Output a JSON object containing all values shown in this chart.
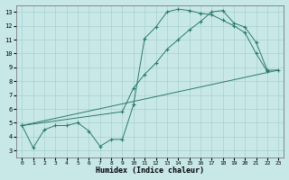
{
  "xlabel": "Humidex (Indice chaleur)",
  "bg_color": "#c8e8e8",
  "grid_color": "#a8d0d0",
  "line_color": "#2a7a68",
  "xlim": [
    -0.5,
    23.5
  ],
  "ylim": [
    2.5,
    13.5
  ],
  "xticks": [
    0,
    1,
    2,
    3,
    4,
    5,
    6,
    7,
    8,
    9,
    10,
    11,
    12,
    13,
    14,
    15,
    16,
    17,
    18,
    19,
    20,
    21,
    22,
    23
  ],
  "yticks": [
    3,
    4,
    5,
    6,
    7,
    8,
    9,
    10,
    11,
    12,
    13
  ],
  "curve1_x": [
    0,
    1,
    2,
    3,
    4,
    5,
    6,
    7,
    8,
    9,
    10,
    11,
    12,
    13,
    14,
    15,
    16,
    17,
    18,
    19,
    20,
    21,
    22
  ],
  "curve1_y": [
    4.8,
    3.2,
    4.5,
    4.8,
    4.8,
    5.0,
    4.4,
    3.3,
    3.8,
    3.8,
    6.3,
    11.1,
    11.9,
    13.0,
    13.2,
    13.1,
    12.9,
    12.8,
    12.4,
    12.0,
    11.5,
    10.0,
    8.7
  ],
  "curve2_x": [
    0,
    9,
    10,
    11,
    12,
    13,
    14,
    15,
    16,
    17,
    18,
    19,
    20,
    21,
    22,
    23
  ],
  "curve2_y": [
    4.8,
    5.8,
    7.5,
    8.5,
    9.3,
    10.3,
    11.0,
    11.7,
    12.3,
    13.0,
    13.1,
    12.2,
    11.9,
    10.8,
    8.8,
    8.8
  ],
  "curve3_x": [
    0,
    23
  ],
  "curve3_y": [
    4.8,
    8.8
  ]
}
